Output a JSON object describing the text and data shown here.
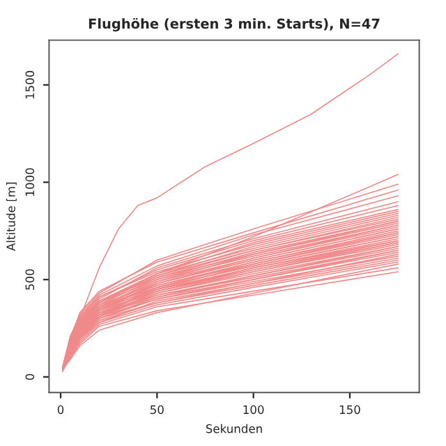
{
  "chart_data": {
    "type": "line",
    "title": "Flughöhe (ersten 3 min. Starts), N=47",
    "xlabel": "Sekunden",
    "ylabel": "Altitude [m]",
    "x": [
      1,
      5,
      10,
      20,
      50,
      100,
      175
    ],
    "xlim": [
      -6,
      186
    ],
    "xticks": [
      0,
      50,
      100,
      150
    ],
    "ylim": [
      -80,
      1730
    ],
    "yticks": [
      0,
      500,
      1000,
      1500
    ],
    "grid": false,
    "legend": false,
    "marker": "none",
    "line_style": "solid",
    "series": [
      {
        "color": "#f08a8a",
        "values": [
          30,
          100,
          170,
          260,
          340,
          420,
          540
        ]
      },
      {
        "color": "#f08a8a",
        "values": [
          35,
          110,
          180,
          270,
          360,
          440,
          560
        ]
      },
      {
        "color": "#f08a8a",
        "values": [
          40,
          90,
          160,
          240,
          330,
          430,
          580
        ]
      },
      {
        "color": "#f08a8a",
        "values": [
          30,
          120,
          200,
          280,
          370,
          460,
          590
        ]
      },
      {
        "color": "#f08a8a",
        "values": [
          45,
          130,
          210,
          300,
          380,
          470,
          600
        ]
      },
      {
        "color": "#f08a8a",
        "values": [
          35,
          100,
          190,
          280,
          390,
          480,
          610
        ]
      },
      {
        "color": "#f08a8a",
        "values": [
          40,
          140,
          230,
          310,
          400,
          490,
          620
        ]
      },
      {
        "color": "#f08a8a",
        "values": [
          30,
          110,
          200,
          290,
          380,
          480,
          630
        ]
      },
      {
        "color": "#f08a8a",
        "values": [
          50,
          150,
          240,
          320,
          410,
          500,
          640
        ]
      },
      {
        "color": "#f08a8a",
        "values": [
          40,
          120,
          210,
          300,
          400,
          500,
          650
        ]
      },
      {
        "color": "#f08a8a",
        "values": [
          35,
          130,
          220,
          310,
          420,
          510,
          650
        ]
      },
      {
        "color": "#f08a8a",
        "values": [
          45,
          160,
          250,
          330,
          420,
          520,
          660
        ]
      },
      {
        "color": "#f08a8a",
        "values": [
          40,
          110,
          200,
          300,
          410,
          520,
          670
        ]
      },
      {
        "color": "#f08a8a",
        "values": [
          30,
          140,
          230,
          320,
          430,
          530,
          670
        ]
      },
      {
        "color": "#f08a8a",
        "values": [
          50,
          170,
          260,
          340,
          440,
          540,
          680
        ]
      },
      {
        "color": "#f08a8a",
        "values": [
          40,
          120,
          220,
          310,
          430,
          540,
          690
        ]
      },
      {
        "color": "#f08a8a",
        "values": [
          35,
          150,
          240,
          330,
          440,
          550,
          690
        ]
      },
      {
        "color": "#f08a8a",
        "values": [
          45,
          130,
          230,
          320,
          450,
          550,
          700
        ]
      },
      {
        "color": "#f08a8a",
        "values": [
          40,
          160,
          260,
          350,
          450,
          560,
          700
        ]
      },
      {
        "color": "#f08a8a",
        "values": [
          30,
          120,
          210,
          310,
          440,
          560,
          710
        ]
      },
      {
        "color": "#f08a8a",
        "values": [
          50,
          180,
          270,
          360,
          460,
          570,
          720
        ]
      },
      {
        "color": "#f08a8a",
        "values": [
          40,
          140,
          240,
          340,
          460,
          570,
          720
        ]
      },
      {
        "color": "#f08a8a",
        "values": [
          35,
          130,
          230,
          330,
          450,
          580,
          730
        ]
      },
      {
        "color": "#f08a8a",
        "values": [
          45,
          170,
          270,
          360,
          470,
          580,
          740
        ]
      },
      {
        "color": "#f08a8a",
        "values": [
          40,
          150,
          250,
          350,
          470,
          590,
          740
        ]
      },
      {
        "color": "#f08a8a",
        "values": [
          30,
          110,
          220,
          320,
          460,
          590,
          750
        ]
      },
      {
        "color": "#f08a8a",
        "values": [
          50,
          190,
          280,
          370,
          480,
          600,
          760
        ]
      },
      {
        "color": "#f08a8a",
        "values": [
          40,
          140,
          250,
          350,
          480,
          600,
          760
        ]
      },
      {
        "color": "#f08a8a",
        "values": [
          35,
          160,
          260,
          360,
          490,
          610,
          770
        ]
      },
      {
        "color": "#f08a8a",
        "values": [
          45,
          130,
          240,
          340,
          480,
          610,
          780
        ]
      },
      {
        "color": "#f08a8a",
        "values": [
          40,
          170,
          280,
          380,
          500,
          620,
          780
        ]
      },
      {
        "color": "#f08a8a",
        "values": [
          30,
          150,
          260,
          360,
          490,
          630,
          790
        ]
      },
      {
        "color": "#f08a8a",
        "values": [
          50,
          200,
          300,
          390,
          510,
          630,
          800
        ]
      },
      {
        "color": "#f08a8a",
        "values": [
          40,
          140,
          250,
          360,
          500,
          640,
          800
        ]
      },
      {
        "color": "#f08a8a",
        "values": [
          35,
          170,
          280,
          380,
          520,
          650,
          810
        ]
      },
      {
        "color": "#f08a8a",
        "values": [
          45,
          160,
          270,
          370,
          510,
          650,
          820
        ]
      },
      {
        "color": "#f08a8a",
        "values": [
          40,
          180,
          290,
          390,
          530,
          660,
          830
        ]
      },
      {
        "color": "#f08a8a",
        "values": [
          30,
          150,
          270,
          380,
          520,
          670,
          840
        ]
      },
      {
        "color": "#f08a8a",
        "values": [
          50,
          210,
          310,
          410,
          540,
          680,
          850
        ]
      },
      {
        "color": "#f08a8a",
        "values": [
          40,
          160,
          280,
          390,
          530,
          690,
          860
        ]
      },
      {
        "color": "#f08a8a",
        "values": [
          45,
          190,
          300,
          410,
          550,
          700,
          880
        ]
      },
      {
        "color": "#f08a8a",
        "values": [
          40,
          170,
          290,
          400,
          560,
          710,
          900
        ]
      },
      {
        "color": "#f08a8a",
        "values": [
          35,
          180,
          310,
          420,
          570,
          730,
          930
        ]
      },
      {
        "color": "#f08a8a",
        "values": [
          40,
          200,
          330,
          440,
          590,
          740,
          960
        ]
      },
      {
        "color": "#f08a8a",
        "values": [
          45,
          190,
          320,
          430,
          600,
          760,
          990
        ]
      },
      {
        "color": "#f08a8a",
        "values": [
          40,
          150,
          260,
          380,
          530,
          720,
          1040
        ]
      },
      {
        "color": "#f08a8a",
        "x": [
          1,
          5,
          10,
          20,
          30,
          40,
          50,
          75,
          100,
          130,
          160,
          175
        ],
        "values": [
          30,
          130,
          300,
          560,
          760,
          880,
          920,
          1080,
          1200,
          1350,
          1550,
          1660
        ]
      }
    ]
  }
}
